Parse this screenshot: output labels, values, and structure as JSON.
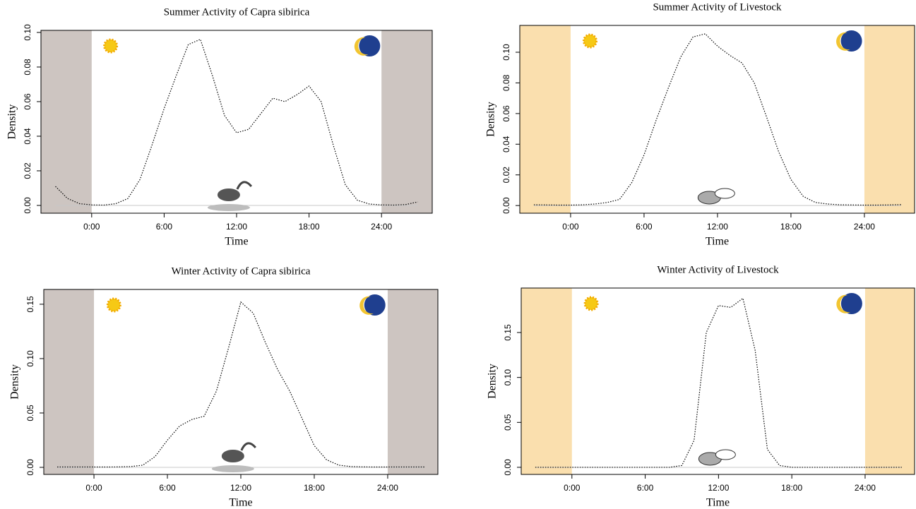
{
  "chart_data": [
    {
      "type": "line",
      "title": "Summer Activity of Capra sibirica",
      "xlabel": "Time",
      "ylabel": "Density",
      "x": [
        -3,
        -2,
        -1,
        0,
        1,
        2,
        3,
        4,
        5,
        6,
        7,
        8,
        9,
        10,
        11,
        12,
        13,
        14,
        15,
        16,
        17,
        18,
        19,
        20,
        21,
        22,
        23,
        24,
        25,
        26,
        27
      ],
      "series": [
        {
          "color": "#000000",
          "values": [
            0.011,
            0.004,
            0.001,
            0.0003,
            0.0002,
            0.001,
            0.004,
            0.015,
            0.035,
            0.056,
            0.075,
            0.093,
            0.096,
            0.075,
            0.052,
            0.042,
            0.044,
            0.053,
            0.062,
            0.06,
            0.064,
            0.069,
            0.06,
            0.035,
            0.012,
            0.003,
            0.0008,
            0.0003,
            0.0002,
            0.0005,
            0.002
          ]
        }
      ],
      "xlim": [
        -4.2,
        28.2
      ],
      "ylim": [
        -0.0045,
        0.1012
      ],
      "xticks": [
        {
          "value": 0,
          "label": "0:00"
        },
        {
          "value": 6,
          "label": "6:00"
        },
        {
          "value": 12,
          "label": "12:00"
        },
        {
          "value": 18,
          "label": "18:00"
        },
        {
          "value": 24,
          "label": "24:00"
        }
      ],
      "yticks": [
        {
          "value": 0,
          "label": "0.00"
        },
        {
          "value": 0.02,
          "label": "0.02"
        },
        {
          "value": 0.04,
          "label": "0.04"
        },
        {
          "value": 0.06,
          "label": "0.06"
        },
        {
          "value": 0.08,
          "label": "0.08"
        },
        {
          "value": 0.1,
          "label": "0.10"
        }
      ],
      "shading": {
        "color": "#cdc5c1",
        "ranges": [
          [
            -4.2,
            0
          ],
          [
            24,
            28.2
          ]
        ]
      }
    },
    {
      "type": "line",
      "title": "Summer Activity of Livestock",
      "xlabel": "Time",
      "ylabel": "Density",
      "x": [
        -3,
        -2,
        -1,
        0,
        1,
        2,
        3,
        4,
        5,
        6,
        7,
        8,
        9,
        10,
        11,
        12,
        13,
        14,
        15,
        16,
        17,
        18,
        19,
        20,
        21,
        22,
        23,
        24,
        25,
        26,
        27
      ],
      "series": [
        {
          "color": "#000000",
          "values": [
            0.0005,
            0.0004,
            0.0003,
            0.0003,
            0.0005,
            0.001,
            0.002,
            0.004,
            0.015,
            0.033,
            0.056,
            0.077,
            0.097,
            0.11,
            0.112,
            0.104,
            0.098,
            0.093,
            0.08,
            0.058,
            0.035,
            0.017,
            0.006,
            0.002,
            0.001,
            0.0005,
            0.0004,
            0.0003,
            0.0003,
            0.0004,
            0.0006
          ]
        }
      ],
      "xlim": [
        -4.15,
        28.1
      ],
      "ylim": [
        -0.005,
        0.1175
      ],
      "xticks": [
        {
          "value": 0,
          "label": "0:00"
        },
        {
          "value": 6,
          "label": "6:00"
        },
        {
          "value": 12,
          "label": "12:00"
        },
        {
          "value": 18,
          "label": "18:00"
        },
        {
          "value": 24,
          "label": "24:00"
        }
      ],
      "yticks": [
        {
          "value": 0,
          "label": "0.00"
        },
        {
          "value": 0.02,
          "label": "0.02"
        },
        {
          "value": 0.04,
          "label": "0.04"
        },
        {
          "value": 0.06,
          "label": "0.06"
        },
        {
          "value": 0.08,
          "label": "0.08"
        },
        {
          "value": 0.1,
          "label": "0.10"
        }
      ],
      "shading": {
        "color": "#fadfae",
        "ranges": [
          [
            -4.15,
            0
          ],
          [
            24,
            28.1
          ]
        ]
      }
    },
    {
      "type": "line",
      "title": "Winter Activity of Capra sibirica",
      "xlabel": "Time",
      "ylabel": "Density",
      "x": [
        -3,
        -2,
        -1,
        0,
        1,
        2,
        3,
        4,
        5,
        6,
        7,
        8,
        9,
        10,
        11,
        12,
        13,
        14,
        15,
        16,
        17,
        18,
        19,
        20,
        21,
        22,
        23,
        24,
        25,
        26,
        27
      ],
      "series": [
        {
          "color": "#000000",
          "values": [
            0.0003,
            0.0003,
            0.0003,
            0.0003,
            0.0003,
            0.0004,
            0.0007,
            0.002,
            0.01,
            0.025,
            0.038,
            0.044,
            0.047,
            0.07,
            0.11,
            0.152,
            0.142,
            0.115,
            0.09,
            0.07,
            0.045,
            0.02,
            0.007,
            0.002,
            0.0007,
            0.0004,
            0.0003,
            0.0003,
            0.0003,
            0.0003,
            0.0003
          ]
        }
      ],
      "xlim": [
        -4.1,
        28.1
      ],
      "ylim": [
        -0.0065,
        0.1636
      ],
      "xticks": [
        {
          "value": 0,
          "label": "0:00"
        },
        {
          "value": 6,
          "label": "6:00"
        },
        {
          "value": 12,
          "label": "12:00"
        },
        {
          "value": 18,
          "label": "18:00"
        },
        {
          "value": 24,
          "label": "24:00"
        }
      ],
      "yticks": [
        {
          "value": 0,
          "label": "0.00"
        },
        {
          "value": 0.05,
          "label": "0.05"
        },
        {
          "value": 0.1,
          "label": "0.10"
        },
        {
          "value": 0.15,
          "label": "0.15"
        }
      ],
      "shading": {
        "color": "#cdc5c1",
        "ranges": [
          [
            -4.1,
            0
          ],
          [
            24,
            28.1
          ]
        ]
      }
    },
    {
      "type": "line",
      "title": "Winter Activity of Livestock",
      "xlabel": "Time",
      "ylabel": "Density",
      "x": [
        -3,
        -2,
        -1,
        0,
        1,
        2,
        3,
        4,
        5,
        6,
        7,
        8,
        9,
        10,
        11,
        12,
        13,
        14,
        15,
        16,
        17,
        18,
        19,
        20,
        21,
        22,
        23,
        24,
        25,
        26,
        27
      ],
      "series": [
        {
          "color": "#000000",
          "values": [
            0,
            0,
            0,
            0,
            0,
            0,
            0,
            0,
            0,
            0,
            0,
            0,
            0.002,
            0.03,
            0.15,
            0.18,
            0.178,
            0.188,
            0.13,
            0.02,
            0.002,
            0,
            0,
            0,
            0,
            0,
            0,
            0,
            0,
            0,
            0
          ]
        }
      ],
      "xlim": [
        -4.15,
        28.05
      ],
      "ylim": [
        -0.0079,
        0.1995
      ],
      "xticks": [
        {
          "value": 0,
          "label": "0:00"
        },
        {
          "value": 6,
          "label": "6:00"
        },
        {
          "value": 12,
          "label": "12:00"
        },
        {
          "value": 18,
          "label": "18:00"
        },
        {
          "value": 24,
          "label": "24:00"
        }
      ],
      "yticks": [
        {
          "value": 0,
          "label": "0.00"
        },
        {
          "value": 0.05,
          "label": "0.05"
        },
        {
          "value": 0.1,
          "label": "0.10"
        },
        {
          "value": 0.15,
          "label": "0.15"
        }
      ],
      "shading": {
        "color": "#fadfae",
        "ranges": [
          [
            -4.15,
            0
          ],
          [
            24,
            28.05
          ]
        ]
      }
    }
  ]
}
